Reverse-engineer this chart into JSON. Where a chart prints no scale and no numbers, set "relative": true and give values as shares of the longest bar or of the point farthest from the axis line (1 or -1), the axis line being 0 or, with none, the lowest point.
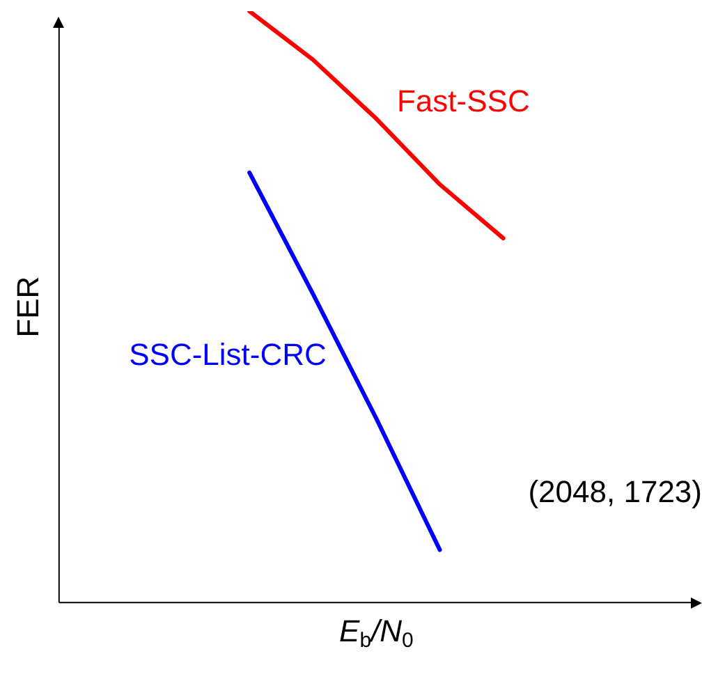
{
  "chart_data": {
    "type": "line",
    "relative": true,
    "xlabel": "E$_{b}$/N$_{0}$",
    "ylabel": "FER",
    "categories": [
      null,
      null,
      null,
      null,
      null,
      null,
      null,
      null,
      null,
      null,
      null
    ],
    "series": [
      {
        "name": "Fast-SSC",
        "color": "#ff0000",
        "values": [
          null,
          null,
          null,
          1,
          0.918,
          0.818,
          0.707,
          0.616,
          null,
          null,
          null
        ]
      },
      {
        "name": "SSC-List-CRC",
        "color": "#0000ff",
        "values": [
          null,
          null,
          null,
          0.727,
          0.522,
          0.311,
          0.089,
          null,
          null,
          null,
          null
        ]
      }
    ],
    "annotations": [
      "(2048, 1723)"
    ],
    "legend": false,
    "grid": false,
    "marker": "none",
    "line_style": "solid"
  }
}
